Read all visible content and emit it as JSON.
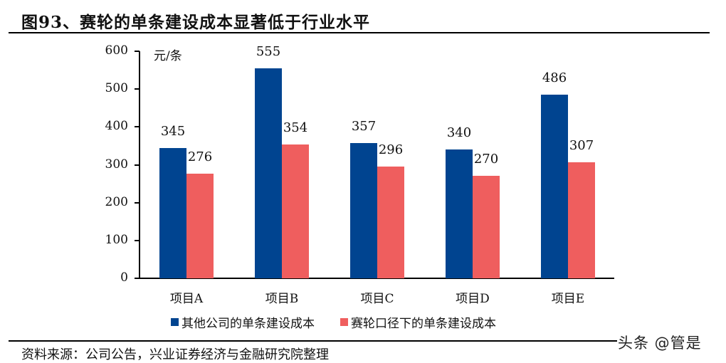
{
  "title": "图93、赛轮的单条建设成本显著低于行业水平",
  "source": "资料来源：公司公告，兴业证券经济与金融研究院整理",
  "watermark": "头条 @管是",
  "colors": {
    "series0": "#004490",
    "series1": "#EF5E5E"
  },
  "chart_data": {
    "type": "bar",
    "title": "赛轮的单条建设成本显著低于行业水平",
    "xlabel": "",
    "ylabel": "元/条",
    "ylim": [
      0,
      600
    ],
    "yticks": [
      0,
      100,
      200,
      300,
      400,
      500,
      600
    ],
    "grid": false,
    "legend_position": "bottom",
    "categories": [
      "项目A",
      "项目B",
      "项目C",
      "项目D",
      "项目E"
    ],
    "series": [
      {
        "name": "其他公司的单条建设成本",
        "color": "#004490",
        "values": [
          345,
          555,
          357,
          340,
          486
        ]
      },
      {
        "name": "赛轮口径下的单条建设成本",
        "color": "#EF5E5E",
        "values": [
          276,
          354,
          296,
          270,
          307
        ]
      }
    ]
  }
}
